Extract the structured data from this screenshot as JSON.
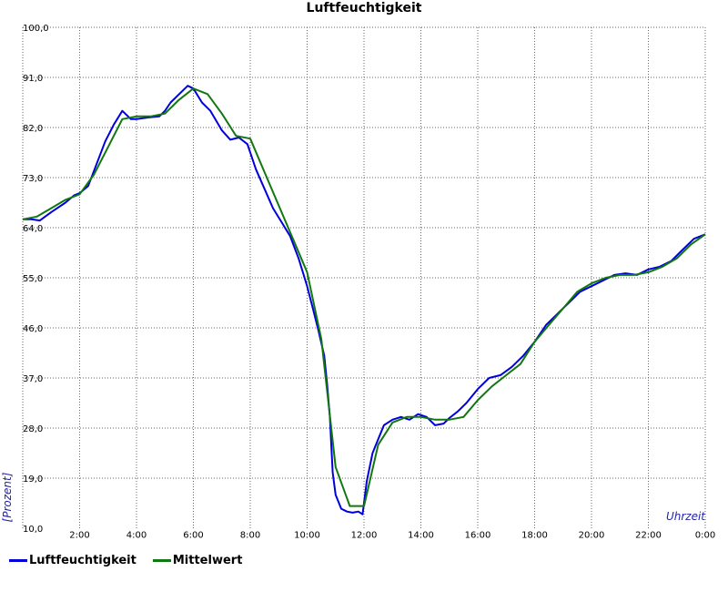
{
  "chart_data": {
    "type": "line",
    "title": "Luftfeuchtigkeit",
    "xlabel": "Uhrzeit",
    "ylabel": "[Prozent]",
    "xlim": [
      0,
      24
    ],
    "ylim": [
      10,
      100
    ],
    "y_tick_values": [
      10,
      19,
      28,
      37,
      46,
      55,
      64,
      73,
      82,
      91,
      100
    ],
    "y_tick_labels": [
      "10,0",
      "19,0",
      "28,0",
      "37,0",
      "46,0",
      "55,0",
      "64,0",
      "73,0",
      "82,0",
      "91,0",
      "100,0"
    ],
    "x_tick_values": [
      2,
      4,
      6,
      8,
      10,
      12,
      14,
      16,
      18,
      20,
      22,
      24
    ],
    "x_tick_labels": [
      "2:00",
      "4:00",
      "6:00",
      "8:00",
      "10:00",
      "12:00",
      "14:00",
      "16:00",
      "18:00",
      "20:00",
      "22:00",
      "0:00"
    ],
    "grid": true,
    "legend_position": "bottom-left",
    "series": [
      {
        "name": "Luftfeuchtigkeit",
        "color": "#0000dd",
        "x": [
          0,
          0.3,
          0.6,
          1.0,
          1.5,
          1.8,
          2.0,
          2.3,
          2.6,
          2.9,
          3.2,
          3.5,
          3.8,
          4.0,
          4.4,
          4.8,
          5.0,
          5.2,
          5.5,
          5.8,
          6.0,
          6.3,
          6.6,
          7.0,
          7.3,
          7.6,
          7.9,
          8.2,
          8.5,
          8.8,
          9.1,
          9.4,
          9.7,
          10.0,
          10.2,
          10.4,
          10.6,
          10.7,
          10.8,
          10.9,
          11.0,
          11.2,
          11.4,
          11.6,
          11.8,
          11.95,
          12.1,
          12.3,
          12.5,
          12.7,
          13.0,
          13.3,
          13.6,
          13.9,
          14.2,
          14.5,
          14.8,
          15.0,
          15.3,
          15.6,
          16.0,
          16.4,
          16.8,
          17.2,
          17.6,
          18.0,
          18.4,
          18.8,
          19.2,
          19.6,
          20.0,
          20.4,
          20.8,
          21.2,
          21.6,
          22.0,
          22.4,
          22.8,
          23.2,
          23.6,
          24.0
        ],
        "y": [
          65.5,
          65.5,
          65.3,
          66.8,
          68.5,
          69.8,
          70.2,
          71.5,
          75.5,
          79.5,
          82.5,
          85.0,
          83.5,
          83.5,
          83.8,
          84.0,
          85.0,
          86.5,
          88.0,
          89.5,
          89.0,
          86.5,
          85.0,
          81.5,
          79.8,
          80.2,
          79.0,
          74.5,
          71.0,
          67.5,
          65.0,
          62.5,
          58.5,
          53.5,
          49.5,
          45.5,
          41.0,
          36.0,
          30.0,
          20.0,
          16.0,
          13.5,
          13.0,
          12.8,
          13.0,
          12.5,
          18.5,
          23.5,
          26.0,
          28.5,
          29.5,
          30.0,
          29.5,
          30.5,
          30.0,
          28.5,
          28.8,
          29.8,
          31.0,
          32.5,
          35.0,
          37.0,
          37.5,
          39.0,
          41.0,
          43.5,
          46.5,
          48.5,
          50.5,
          52.5,
          53.5,
          54.5,
          55.5,
          55.8,
          55.5,
          56.5,
          57.0,
          58.0,
          60.0,
          62.0,
          62.8
        ]
      },
      {
        "name": "Mittelwert",
        "color": "#117711",
        "x": [
          0,
          0.5,
          1.0,
          1.5,
          2.0,
          2.5,
          3.0,
          3.5,
          4.0,
          4.5,
          5.0,
          5.5,
          6.0,
          6.5,
          7.0,
          7.5,
          8.0,
          8.5,
          9.0,
          9.5,
          10.0,
          10.5,
          11.0,
          11.5,
          12.0,
          12.5,
          13.0,
          13.5,
          14.0,
          14.5,
          15.0,
          15.5,
          16.0,
          16.5,
          17.0,
          17.5,
          18.0,
          18.5,
          19.0,
          19.5,
          20.0,
          20.5,
          21.0,
          21.5,
          22.0,
          22.5,
          23.0,
          23.5,
          24.0
        ],
        "y": [
          65.5,
          66.0,
          67.5,
          69.0,
          70.0,
          73.5,
          78.5,
          83.5,
          84.0,
          84.0,
          84.5,
          87.0,
          89.0,
          88.0,
          84.5,
          80.5,
          80.0,
          74.0,
          68.0,
          62.0,
          56.0,
          44.0,
          21.0,
          14.0,
          14.0,
          25.0,
          29.0,
          30.0,
          30.0,
          29.5,
          29.5,
          30.0,
          33.0,
          35.5,
          37.5,
          39.5,
          43.5,
          46.5,
          49.5,
          52.5,
          54.0,
          55.0,
          55.5,
          55.5,
          56.0,
          57.0,
          58.5,
          61.0,
          62.8
        ]
      }
    ]
  }
}
